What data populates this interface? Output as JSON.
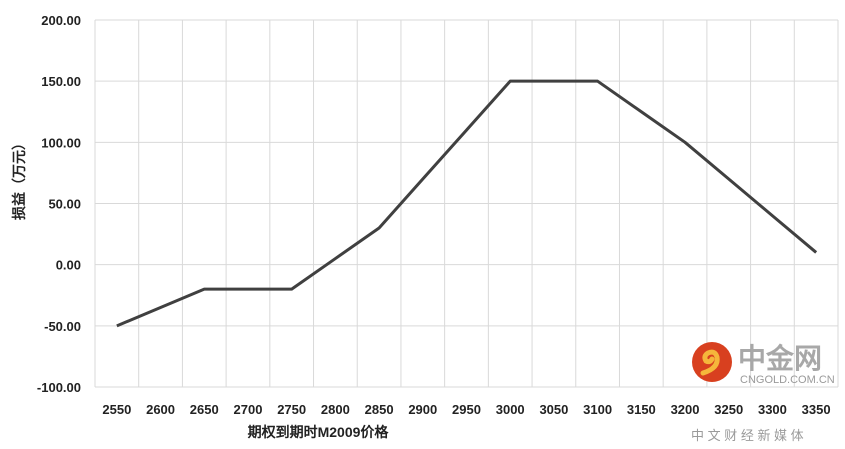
{
  "chart_data": {
    "type": "line",
    "xlabel": "期权到期时M2009价格",
    "ylabel": "损益（万元）",
    "categories": [
      "2550",
      "2600",
      "2650",
      "2700",
      "2750",
      "2800",
      "2850",
      "2900",
      "2950",
      "3000",
      "3050",
      "3100",
      "3150",
      "3200",
      "3250",
      "3300",
      "3350"
    ],
    "series": [
      {
        "values": [
          -50,
          -35,
          -20,
          -20,
          -20,
          5,
          30,
          70,
          110,
          150,
          150,
          150,
          125,
          100,
          70,
          40,
          10
        ]
      }
    ],
    "ylim": [
      -100,
      200
    ],
    "yticks": [
      "200.00",
      "150.00",
      "100.00",
      "50.00",
      "0.00",
      "-50.00",
      "-100.00"
    ],
    "grid": true,
    "line_color": "#404040"
  },
  "watermark": {
    "brand": "中金网",
    "domain": "CNGOLD.COM.CN",
    "tagline": "中 文 财 经 新 媒 体"
  }
}
